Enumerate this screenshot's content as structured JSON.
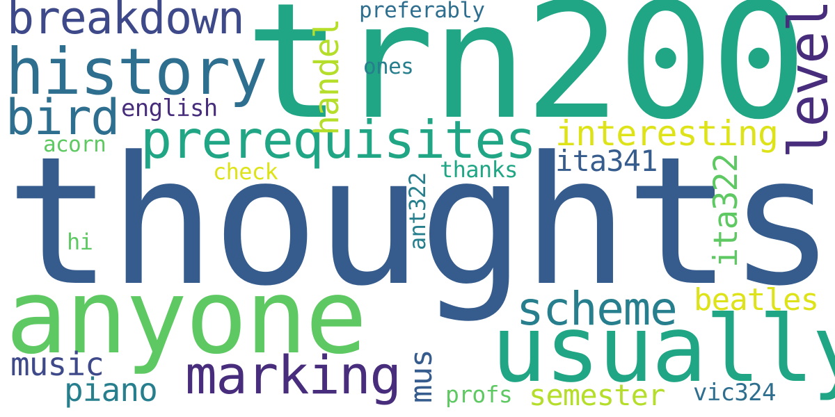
{
  "colors": {
    "background": "#ffffff",
    "dark_purple": "#472d7b",
    "indigo": "#3e4989",
    "blue": "#365c8d",
    "steel_teal": "#2e6e8e",
    "teal": "#277f8e",
    "sea_green": "#21a685",
    "green": "#5ec962",
    "lime": "#b5de2b",
    "yellow": "#dde318"
  },
  "words": {
    "thoughts": "thoughts",
    "trn200": "trn200",
    "anyone": "anyone",
    "usually": "usually",
    "history": "history",
    "breakdown": "breakdown",
    "bird": "bird",
    "prerequisites": "prerequisites",
    "marking": "marking",
    "scheme": "scheme",
    "level": "level",
    "handel": "handel",
    "interesting": "interesting",
    "ita322": "ita322",
    "ita341": "ita341",
    "beatles": "beatles",
    "music": "music",
    "piano": "piano",
    "semester": "semester",
    "mus": "mus",
    "english": "english",
    "preferably": "preferably",
    "ones": "ones",
    "acorn": "acorn",
    "check": "check",
    "thanks": "thanks",
    "ant322": "ant322",
    "hi": "hi",
    "profs": "profs",
    "vic324": "vic324"
  }
}
